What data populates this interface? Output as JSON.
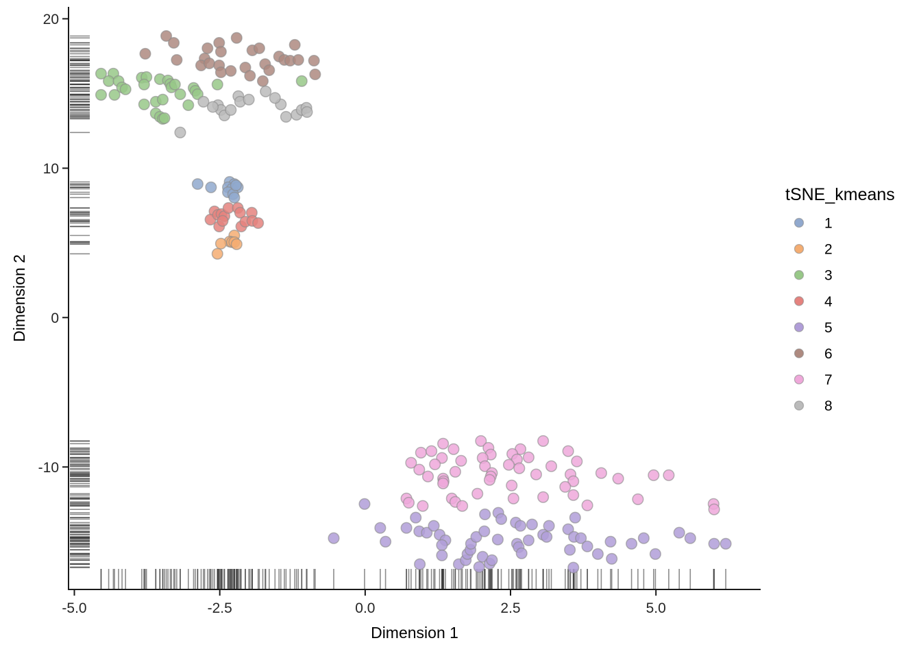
{
  "chart_data": {
    "type": "scatter",
    "title": "",
    "xlabel": "Dimension 1",
    "ylabel": "Dimension 2",
    "legend_title": "tSNE_kmeans",
    "legend_position": "right",
    "grid": false,
    "xlim": [
      -5.1,
      6.8
    ],
    "ylim": [
      -18.2,
      20.8
    ],
    "x_ticks": {
      "values": [
        -5.0,
        -2.5,
        0.0,
        2.5,
        5.0
      ],
      "labels": [
        "-5.0",
        "-2.5",
        "0.0",
        "2.5",
        "5.0"
      ]
    },
    "y_ticks": {
      "values": [
        20,
        10,
        0,
        -10
      ],
      "labels": [
        "20",
        "10",
        "0",
        "-10"
      ]
    },
    "rug": {
      "x": true,
      "y": true,
      "color": "#1a1a1a",
      "opacity": 0.5,
      "length": 29
    },
    "point_style": {
      "radius": 7.8,
      "fill_opacity": 0.85,
      "stroke": "#8a8a8a",
      "stroke_opacity": 0.6,
      "stroke_width": 1.5
    },
    "series": [
      {
        "name": "1",
        "color": "#91A9CE",
        "points": [
          [
            -2.88,
            8.94
          ],
          [
            -2.65,
            8.72
          ],
          [
            -2.33,
            9.08
          ],
          [
            -2.25,
            8.94
          ],
          [
            -2.36,
            8.72
          ],
          [
            -2.29,
            8.62
          ],
          [
            -2.19,
            8.72
          ],
          [
            -2.36,
            8.39
          ],
          [
            -2.27,
            8.26
          ],
          [
            -2.25,
            8.03
          ],
          [
            -2.22,
            8.85
          ]
        ]
      },
      {
        "name": "2",
        "color": "#F4AD72",
        "points": [
          [
            -2.25,
            5.5
          ],
          [
            -2.33,
            5.09
          ],
          [
            -2.29,
            5.05
          ],
          [
            -2.25,
            5.05
          ],
          [
            -2.21,
            4.91
          ],
          [
            -2.48,
            4.95
          ],
          [
            -2.54,
            4.27
          ]
        ]
      },
      {
        "name": "3",
        "color": "#98C888",
        "points": [
          [
            -4.54,
            16.33
          ],
          [
            -4.33,
            16.33
          ],
          [
            -4.41,
            15.83
          ],
          [
            -4.24,
            15.83
          ],
          [
            -4.18,
            15.41
          ],
          [
            -4.12,
            15.28
          ],
          [
            -4.54,
            14.91
          ],
          [
            -4.31,
            14.91
          ],
          [
            -3.84,
            16.06
          ],
          [
            -3.76,
            16.1
          ],
          [
            -3.8,
            15.6
          ],
          [
            -3.53,
            15.96
          ],
          [
            -3.39,
            15.87
          ],
          [
            -3.35,
            15.64
          ],
          [
            -3.33,
            15.41
          ],
          [
            -3.27,
            15.6
          ],
          [
            -3.18,
            14.95
          ],
          [
            -2.95,
            15.37
          ],
          [
            -2.92,
            15.18
          ],
          [
            -2.88,
            14.95
          ],
          [
            -2.54,
            15.6
          ],
          [
            -3.8,
            14.27
          ],
          [
            -3.6,
            14.45
          ],
          [
            -3.48,
            14.59
          ],
          [
            -3.6,
            13.67
          ],
          [
            -3.53,
            13.44
          ],
          [
            -3.48,
            13.3
          ],
          [
            -3.45,
            13.35
          ],
          [
            -3.04,
            14.22
          ],
          [
            -1.09,
            15.83
          ]
        ]
      },
      {
        "name": "4",
        "color": "#E5827E",
        "points": [
          [
            -2.59,
            7.11
          ],
          [
            -2.66,
            6.56
          ],
          [
            -2.53,
            6.88
          ],
          [
            -2.47,
            6.93
          ],
          [
            -2.42,
            6.79
          ],
          [
            -2.51,
            6.1
          ],
          [
            -2.45,
            6.47
          ],
          [
            -2.35,
            7.34
          ],
          [
            -2.19,
            7.34
          ],
          [
            -2.15,
            7.02
          ],
          [
            -2.13,
            6.1
          ],
          [
            -2.06,
            6.42
          ],
          [
            -1.95,
            7.02
          ],
          [
            -1.94,
            6.47
          ],
          [
            -1.84,
            6.33
          ]
        ]
      },
      {
        "name": "5",
        "color": "#B09DD8",
        "points": [
          [
            -0.01,
            -12.48
          ],
          [
            -0.54,
            -14.77
          ],
          [
            0.26,
            -14.08
          ],
          [
            0.35,
            -15.0
          ],
          [
            0.87,
            -13.39
          ],
          [
            0.71,
            -14.08
          ],
          [
            0.93,
            -14.31
          ],
          [
            1.06,
            -14.4
          ],
          [
            1.18,
            -13.94
          ],
          [
            1.28,
            -14.54
          ],
          [
            1.38,
            -14.91
          ],
          [
            1.32,
            -15.23
          ],
          [
            1.32,
            -15.92
          ],
          [
            0.94,
            -16.51
          ],
          [
            1.61,
            -16.51
          ],
          [
            1.73,
            -16.24
          ],
          [
            1.76,
            -15.83
          ],
          [
            1.81,
            -15.55
          ],
          [
            1.82,
            -15.14
          ],
          [
            1.91,
            -14.68
          ],
          [
            2.05,
            -14.31
          ],
          [
            2.02,
            -16.01
          ],
          [
            1.96,
            -16.7
          ],
          [
            2.14,
            -16.47
          ],
          [
            2.18,
            -16.24
          ],
          [
            2.28,
            -14.86
          ],
          [
            2.29,
            -13.07
          ],
          [
            2.06,
            -13.17
          ],
          [
            2.34,
            -13.49
          ],
          [
            2.59,
            -13.72
          ],
          [
            2.67,
            -13.94
          ],
          [
            2.87,
            -13.85
          ],
          [
            2.61,
            -15.14
          ],
          [
            2.64,
            -15.37
          ],
          [
            2.69,
            -15.78
          ],
          [
            2.81,
            -14.91
          ],
          [
            3.61,
            -13.39
          ],
          [
            3.16,
            -13.94
          ],
          [
            3.49,
            -14.17
          ],
          [
            3.06,
            -14.54
          ],
          [
            3.12,
            -14.68
          ],
          [
            3.59,
            -14.68
          ],
          [
            3.71,
            -14.77
          ],
          [
            3.82,
            -15.32
          ],
          [
            3.52,
            -15.55
          ],
          [
            4.0,
            -15.83
          ],
          [
            4.22,
            -15.0
          ],
          [
            4.24,
            -16.15
          ],
          [
            4.58,
            -15.14
          ],
          [
            4.79,
            -14.77
          ],
          [
            4.99,
            -15.83
          ],
          [
            5.4,
            -14.4
          ],
          [
            5.59,
            -14.77
          ],
          [
            6.0,
            -15.14
          ],
          [
            6.2,
            -15.14
          ],
          [
            3.58,
            -16.74
          ]
        ]
      },
      {
        "name": "6",
        "color": "#AE8A80",
        "points": [
          [
            -3.42,
            18.85
          ],
          [
            -3.29,
            18.39
          ],
          [
            -3.78,
            17.66
          ],
          [
            -3.24,
            17.25
          ],
          [
            -2.71,
            18.03
          ],
          [
            -2.51,
            18.39
          ],
          [
            -2.21,
            18.72
          ],
          [
            -2.48,
            17.8
          ],
          [
            -2.76,
            17.34
          ],
          [
            -2.82,
            16.88
          ],
          [
            -2.68,
            17.02
          ],
          [
            -2.51,
            16.88
          ],
          [
            -2.48,
            16.42
          ],
          [
            -2.31,
            16.51
          ],
          [
            -2.06,
            16.74
          ],
          [
            -1.98,
            16.19
          ],
          [
            -1.94,
            17.89
          ],
          [
            -1.82,
            18.03
          ],
          [
            -1.72,
            16.97
          ],
          [
            -1.65,
            16.56
          ],
          [
            -1.48,
            17.48
          ],
          [
            -1.39,
            17.25
          ],
          [
            -1.29,
            17.2
          ],
          [
            -1.15,
            17.25
          ],
          [
            -1.21,
            18.26
          ],
          [
            -0.88,
            17.2
          ],
          [
            -0.86,
            16.28
          ],
          [
            -1.76,
            15.83
          ]
        ]
      },
      {
        "name": "7",
        "color": "#EFA8DA",
        "points": [
          [
            1.34,
            -8.44
          ],
          [
            0.96,
            -9.04
          ],
          [
            1.14,
            -8.94
          ],
          [
            1.52,
            -8.81
          ],
          [
            1.32,
            -9.4
          ],
          [
            0.79,
            -9.72
          ],
          [
            0.93,
            -10.18
          ],
          [
            1.08,
            -10.64
          ],
          [
            1.2,
            -9.82
          ],
          [
            1.65,
            -9.59
          ],
          [
            1.55,
            -10.32
          ],
          [
            1.34,
            -10.78
          ],
          [
            1.35,
            -10.96
          ],
          [
            1.34,
            -11.1
          ],
          [
            1.99,
            -8.26
          ],
          [
            2.12,
            -8.72
          ],
          [
            2.16,
            -9.17
          ],
          [
            2.02,
            -9.4
          ],
          [
            2.06,
            -9.95
          ],
          [
            2.18,
            -10.41
          ],
          [
            2.16,
            -10.64
          ],
          [
            2.14,
            -10.87
          ],
          [
            2.67,
            -8.81
          ],
          [
            2.53,
            -9.13
          ],
          [
            2.61,
            -9.5
          ],
          [
            2.81,
            -9.36
          ],
          [
            2.47,
            -9.86
          ],
          [
            2.65,
            -10.09
          ],
          [
            2.94,
            -10.5
          ],
          [
            2.52,
            -11.24
          ],
          [
            1.93,
            -11.79
          ],
          [
            2.55,
            -12.11
          ],
          [
            1.49,
            -12.11
          ],
          [
            1.55,
            -12.34
          ],
          [
            1.67,
            -12.61
          ],
          [
            0.71,
            -12.11
          ],
          [
            0.75,
            -12.39
          ],
          [
            0.99,
            -12.61
          ],
          [
            3.06,
            -8.26
          ],
          [
            3.49,
            -8.94
          ],
          [
            3.64,
            -9.63
          ],
          [
            3.2,
            -9.95
          ],
          [
            3.53,
            -10.5
          ],
          [
            3.58,
            -10.96
          ],
          [
            3.44,
            -11.33
          ],
          [
            3.06,
            -12.02
          ],
          [
            3.58,
            -11.88
          ],
          [
            4.06,
            -10.41
          ],
          [
            4.35,
            -10.78
          ],
          [
            3.82,
            -12.57
          ],
          [
            4.69,
            -12.16
          ],
          [
            4.96,
            -10.55
          ],
          [
            5.22,
            -10.55
          ],
          [
            5.99,
            -12.48
          ],
          [
            6.0,
            -12.84
          ]
        ]
      },
      {
        "name": "8",
        "color": "#BBBBBB",
        "points": [
          [
            -2.78,
            14.45
          ],
          [
            -2.53,
            14.22
          ],
          [
            -2.48,
            13.9
          ],
          [
            -2.42,
            13.53
          ],
          [
            -2.31,
            13.9
          ],
          [
            -2.18,
            14.82
          ],
          [
            -2.15,
            14.45
          ],
          [
            -2.0,
            14.59
          ],
          [
            -1.71,
            15.14
          ],
          [
            -1.45,
            14.27
          ],
          [
            -1.36,
            13.44
          ],
          [
            -1.18,
            13.58
          ],
          [
            -1.09,
            13.9
          ],
          [
            -1.01,
            14.04
          ],
          [
            -1.0,
            13.76
          ],
          [
            -3.18,
            12.39
          ],
          [
            -1.55,
            14.7
          ],
          [
            -2.62,
            14.1
          ]
        ]
      }
    ]
  }
}
